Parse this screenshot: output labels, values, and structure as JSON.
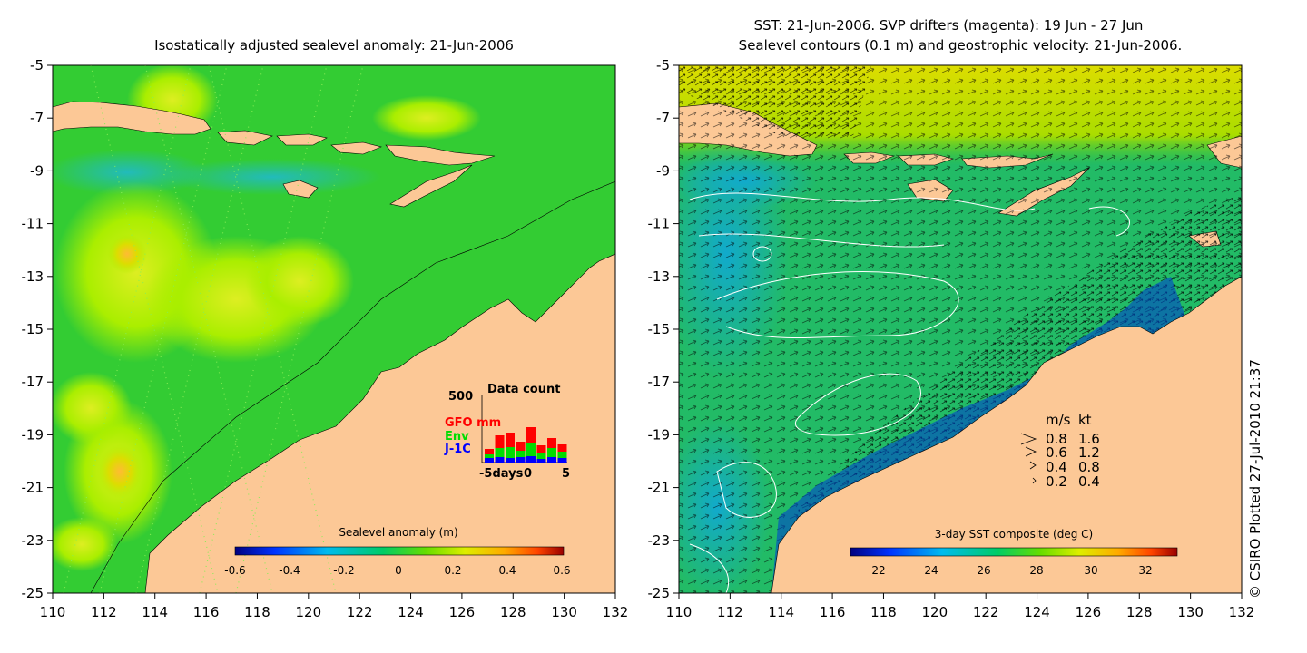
{
  "left_panel": {
    "title": "Isostatically adjusted sealevel anomaly: 21-Jun-2006",
    "colorbar_label": "Sealevel anomaly (m)",
    "colorbar_ticks": [
      "-0.6",
      "-0.4",
      "-0.2",
      "0",
      "0.2",
      "0.4",
      "0.6"
    ],
    "data_count": {
      "title": "Data count",
      "ymax_label": "500",
      "legend": [
        {
          "name": "GFO mm",
          "color": "#ff0000"
        },
        {
          "name": "Env",
          "color": "#00dd00"
        },
        {
          "name": "J-1C",
          "color": "#0000ff"
        }
      ],
      "xaxis_labels": [
        "-5days",
        "0",
        "5"
      ]
    }
  },
  "right_panel": {
    "title_line1": "SST: 21-Jun-2006. SVP drifters (magenta): 19 Jun - 27 Jun",
    "title_line2": "Sealevel contours (0.1 m) and geostrophic velocity: 21-Jun-2006.",
    "colorbar_label": "3-day SST composite (deg C)",
    "colorbar_ticks": [
      "22",
      "24",
      "26",
      "28",
      "30",
      "32"
    ],
    "velocity_legend": {
      "header_ms": "m/s",
      "header_kt": "kt",
      "rows": [
        {
          "ms": "0.8",
          "kt": "1.6"
        },
        {
          "ms": "0.6",
          "kt": "1.2"
        },
        {
          "ms": "0.4",
          "kt": "0.8"
        },
        {
          "ms": "0.2",
          "kt": "0.4"
        }
      ]
    }
  },
  "axes": {
    "y_ticks": [
      "-5",
      "-7",
      "-9",
      "-11",
      "-13",
      "-15",
      "-17",
      "-19",
      "-21",
      "-23",
      "-25"
    ],
    "x_ticks": [
      "110",
      "112",
      "114",
      "116",
      "118",
      "120",
      "122",
      "124",
      "126",
      "128",
      "130",
      "132"
    ]
  },
  "credit": "© CSIRO Plotted 27-Jul-2010 21:37",
  "colors": {
    "land": "#fcc896",
    "ocean_main": "#33cc33",
    "ssh_high": "#aaee00",
    "ssh_low": "#22bbbb",
    "sst_warm": "#dddd00",
    "sst_cold": "#0022bb"
  }
}
